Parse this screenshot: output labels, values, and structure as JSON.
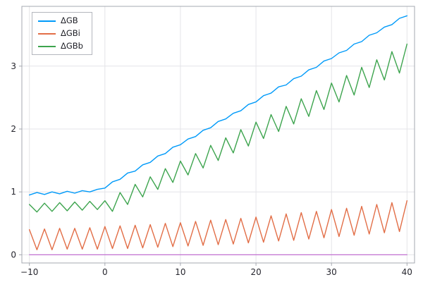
{
  "chart_data": {
    "type": "line",
    "title": "",
    "xlabel": "",
    "ylabel": "",
    "grid": true,
    "legend_position": "top-left",
    "xlim": [
      -11,
      41
    ],
    "ylim": [
      -0.13,
      3.95
    ],
    "xticks": [
      -10,
      0,
      10,
      20,
      30,
      40
    ],
    "yticks": [
      0,
      1,
      2,
      3
    ],
    "x": [
      -10,
      -9,
      -8,
      -7,
      -6,
      -5,
      -4,
      -3,
      -2,
      -1,
      0,
      1,
      2,
      3,
      4,
      5,
      6,
      7,
      8,
      9,
      10,
      11,
      12,
      13,
      14,
      15,
      16,
      17,
      18,
      19,
      20,
      21,
      22,
      23,
      24,
      25,
      26,
      27,
      28,
      29,
      30,
      31,
      32,
      33,
      34,
      35,
      36,
      37,
      38,
      39,
      40
    ],
    "series": [
      {
        "name": "ΔGB",
        "color": "#009af9",
        "in_legend": true,
        "values": [
          0.95,
          0.99,
          0.96,
          1.0,
          0.97,
          1.01,
          0.98,
          1.02,
          1.0,
          1.04,
          1.06,
          1.16,
          1.2,
          1.3,
          1.33,
          1.43,
          1.47,
          1.57,
          1.61,
          1.71,
          1.75,
          1.84,
          1.88,
          1.98,
          2.02,
          2.12,
          2.16,
          2.25,
          2.29,
          2.39,
          2.43,
          2.53,
          2.57,
          2.67,
          2.7,
          2.8,
          2.84,
          2.94,
          2.98,
          3.08,
          3.12,
          3.21,
          3.25,
          3.35,
          3.39,
          3.49,
          3.53,
          3.62,
          3.66,
          3.76,
          3.8
        ]
      },
      {
        "name": "ΔGBi",
        "color": "#e26e47",
        "in_legend": true,
        "values": [
          0.4,
          0.08,
          0.41,
          0.08,
          0.42,
          0.09,
          0.42,
          0.09,
          0.43,
          0.09,
          0.45,
          0.1,
          0.46,
          0.1,
          0.47,
          0.11,
          0.48,
          0.12,
          0.5,
          0.13,
          0.51,
          0.14,
          0.53,
          0.15,
          0.55,
          0.16,
          0.56,
          0.17,
          0.58,
          0.19,
          0.6,
          0.2,
          0.62,
          0.22,
          0.65,
          0.23,
          0.67,
          0.25,
          0.69,
          0.27,
          0.72,
          0.29,
          0.74,
          0.31,
          0.77,
          0.33,
          0.8,
          0.35,
          0.83,
          0.37,
          0.86
        ]
      },
      {
        "name": "ΔGBb",
        "color": "#3da44e",
        "in_legend": true,
        "values": [
          0.8,
          0.68,
          0.82,
          0.69,
          0.83,
          0.7,
          0.84,
          0.71,
          0.85,
          0.72,
          0.86,
          0.69,
          0.99,
          0.8,
          1.12,
          0.92,
          1.24,
          1.04,
          1.37,
          1.15,
          1.49,
          1.27,
          1.61,
          1.38,
          1.74,
          1.5,
          1.86,
          1.62,
          1.99,
          1.73,
          2.11,
          1.85,
          2.23,
          1.96,
          2.36,
          2.08,
          2.48,
          2.2,
          2.61,
          2.31,
          2.73,
          2.43,
          2.85,
          2.54,
          2.98,
          2.66,
          3.1,
          2.78,
          3.23,
          2.89,
          3.35
        ]
      },
      {
        "name": "",
        "color": "#c271d2",
        "in_legend": false,
        "values": [
          0,
          0,
          0,
          0,
          0,
          0,
          0,
          0,
          0,
          0,
          0,
          0,
          0,
          0,
          0,
          0,
          0,
          0,
          0,
          0,
          0,
          0,
          0,
          0,
          0,
          0,
          0,
          0,
          0,
          0,
          0,
          0,
          0,
          0,
          0,
          0,
          0,
          0,
          0,
          0,
          0,
          0,
          0,
          0,
          0,
          0,
          0,
          0,
          0,
          0,
          0
        ]
      }
    ]
  }
}
